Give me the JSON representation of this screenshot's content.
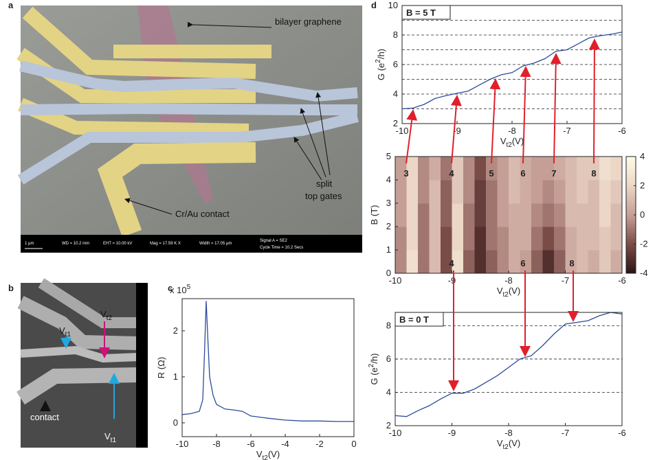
{
  "panel_labels": [
    "a",
    "b",
    "c",
    "d"
  ],
  "panel_a": {
    "annotations": [
      "bilayer graphene",
      "Cr/Au contact",
      "split",
      "top gates"
    ],
    "info_bar": [
      "1 µm",
      "WD = 10.2 mm",
      "EHT = 10.00 kV",
      "Mag = 17.59 K X",
      "Width = 17.05 µm",
      "Signal A = SE2",
      "Cycle Time = 10.2 Secs"
    ]
  },
  "panel_b": {
    "labels": [
      {
        "text": "V",
        "sub": "t1"
      },
      {
        "text": "V",
        "sub": "t2"
      },
      {
        "text": "contact"
      },
      {
        "text": "V",
        "sub": "t1"
      }
    ]
  },
  "chart_data": [
    {
      "type": "line",
      "x": [
        -10,
        -9.5,
        -9,
        -8.8,
        -8.7,
        -8.6,
        -8.5,
        -8.4,
        -8.2,
        -8,
        -7.5,
        -7,
        -6.5,
        -6,
        -5,
        -4,
        -3,
        -2,
        -1,
        0
      ],
      "series": [
        {
          "color": "#2b4a9a",
          "values": [
            0.18,
            0.2,
            0.25,
            0.5,
            1.5,
            2.65,
            1.8,
            1.0,
            0.6,
            0.4,
            0.3,
            0.28,
            0.25,
            0.15,
            0.1,
            0.06,
            0.04,
            0.04,
            0.03,
            0.03
          ]
        }
      ],
      "xlim": [
        -10,
        0
      ],
      "ylim": [
        -0.3,
        2.7
      ],
      "xticks": [
        -10,
        -8,
        -6,
        -4,
        -2,
        0
      ],
      "yticks": [
        0,
        1,
        2
      ],
      "xlabel": {
        "text": "V",
        "sub": "t2",
        "after": "(V)"
      },
      "ylabel": "R (Ω)",
      "scale_label": {
        "text": "x 10",
        "sup": "5"
      }
    },
    {
      "type": "line",
      "title": "B = 5 T",
      "x": [
        -10,
        -9.8,
        -9.6,
        -9.4,
        -9.2,
        -9,
        -8.8,
        -8.6,
        -8.4,
        -8.2,
        -8,
        -7.8,
        -7.6,
        -7.4,
        -7.2,
        -7,
        -6.8,
        -6.6,
        -6.4,
        -6.2,
        -6
      ],
      "series": [
        {
          "color": "#2b4a9a",
          "values": [
            3.0,
            3.05,
            3.3,
            3.7,
            3.9,
            4.05,
            4.2,
            4.6,
            5.0,
            5.3,
            5.45,
            5.9,
            6.1,
            6.4,
            6.9,
            7.0,
            7.4,
            7.8,
            7.95,
            8.05,
            8.2
          ]
        }
      ],
      "xlim": [
        -10,
        -6
      ],
      "ylim": [
        2,
        10
      ],
      "xticks": [
        -10,
        -9,
        -8,
        -7,
        -6
      ],
      "yticks": [
        2,
        4,
        6,
        8,
        10
      ],
      "hlines": [
        3,
        4,
        5,
        6,
        7,
        8,
        9
      ],
      "xlabel": {
        "text": "V",
        "sub": "t2",
        "after": "(V)"
      },
      "ylabel": {
        "text": "G (e",
        "sup": "2",
        "after": "/h)"
      }
    },
    {
      "type": "heatmap",
      "xbins": [
        -10,
        -9.8,
        -9.6,
        -9.4,
        -9.2,
        -9,
        -8.8,
        -8.6,
        -8.4,
        -8.2,
        -8,
        -7.8,
        -7.6,
        -7.4,
        -7.2,
        -7,
        -6.8,
        -6.6,
        -6.4,
        -6.2,
        -6
      ],
      "ybins": [
        0,
        1,
        2,
        3,
        4,
        5
      ],
      "z": [
        [
          -0.5,
          2.5,
          -1,
          1,
          -2,
          2.5,
          -1.5,
          -3,
          -1.5,
          -0.5,
          0.5,
          0,
          -1.5,
          -3,
          -1.5,
          0.5,
          1,
          0.5,
          1.5,
          0.5
        ],
        [
          -0.5,
          2,
          -1,
          1,
          -2,
          2,
          -1,
          -3,
          -1,
          -0.5,
          0.5,
          0.5,
          -1,
          -2,
          -1,
          0.5,
          1,
          1,
          1.5,
          1
        ],
        [
          0,
          2,
          -1,
          1,
          -1.5,
          2,
          -1,
          -2.5,
          -1,
          0,
          0.5,
          0.5,
          -0.5,
          -1,
          -0.5,
          1,
          1,
          1,
          2,
          1
        ],
        [
          0,
          2,
          -0.5,
          1,
          -1.5,
          1.5,
          -0.5,
          -2.5,
          -1,
          0,
          1,
          0.5,
          0,
          -0.5,
          0,
          1,
          1.5,
          1,
          2,
          1.5
        ],
        [
          0,
          2,
          -0.5,
          0.5,
          -1,
          1.5,
          -0.5,
          -2,
          -0.5,
          0,
          1,
          0.5,
          0,
          0,
          0.5,
          1,
          1.5,
          1.5,
          2.5,
          2
        ]
      ],
      "xlim": [
        -10,
        -6
      ],
      "ylim": [
        0,
        5
      ],
      "xticks": [
        -10,
        -9,
        -8,
        -7,
        -6
      ],
      "yticks": [
        0,
        1,
        2,
        3,
        4,
        5
      ],
      "clim": [
        -4,
        4
      ],
      "cticks": [
        -4,
        -2,
        0,
        2,
        4
      ],
      "colormap": [
        "#2b1414",
        "#7a4c48",
        "#c59e95",
        "#ecd6c6",
        "#fdfbe6"
      ],
      "xlabel": {
        "text": "V",
        "sub": "t2",
        "after": "(V)"
      },
      "ylabel": "B (T)",
      "annotations": [
        "3",
        "4",
        "5",
        "6",
        "7",
        "8",
        "4",
        "6",
        "8"
      ]
    },
    {
      "type": "line",
      "title": "B = 0 T",
      "x": [
        -10,
        -9.8,
        -9.6,
        -9.4,
        -9.2,
        -9,
        -8.8,
        -8.6,
        -8.4,
        -8.2,
        -8,
        -7.8,
        -7.6,
        -7.4,
        -7.2,
        -7,
        -6.8,
        -6.6,
        -6.4,
        -6.2,
        -6
      ],
      "series": [
        {
          "color": "#2b4a9a",
          "values": [
            2.6,
            2.55,
            2.9,
            3.2,
            3.6,
            3.95,
            3.95,
            4.2,
            4.6,
            5.0,
            5.5,
            6.0,
            6.2,
            6.8,
            7.5,
            8.1,
            8.2,
            8.3,
            8.6,
            8.8,
            8.7
          ]
        }
      ],
      "xlim": [
        -10,
        -6
      ],
      "ylim": [
        2,
        8.8
      ],
      "xticks": [
        -10,
        -9,
        -8,
        -7,
        -6
      ],
      "yticks": [
        2,
        4,
        6,
        8
      ],
      "hlines": [
        4,
        6,
        8
      ],
      "xlabel": {
        "text": "V",
        "sub": "t2",
        "after": "(V)"
      },
      "ylabel": {
        "text": "G (e",
        "sup": "2",
        "after": "/h)"
      }
    }
  ]
}
